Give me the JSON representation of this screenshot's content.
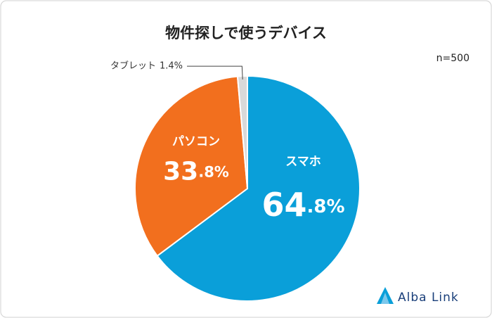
{
  "chart_data": {
    "type": "pie",
    "title": "物件探しで使うデバイス",
    "annotation": "n=500",
    "categories": [
      "スマホ",
      "パソコン",
      "タブレット"
    ],
    "values": [
      64.8,
      33.8,
      1.4
    ],
    "value_labels": [
      "64.8%",
      "33.8%",
      "1.4%"
    ],
    "colors": [
      "#0a9fd9",
      "#f26f1e",
      "#d9d9d9"
    ],
    "brand": "Alba Link"
  }
}
